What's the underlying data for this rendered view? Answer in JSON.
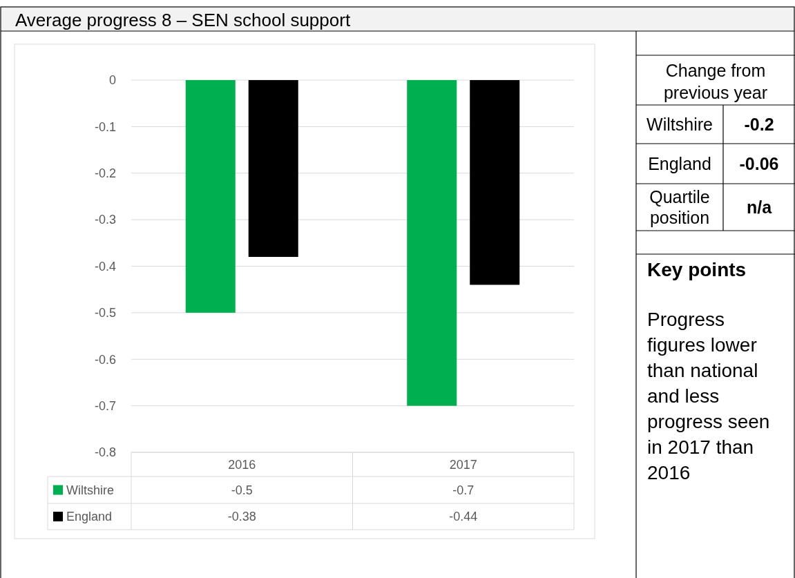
{
  "chart_data": [
    {
      "type": "bar",
      "title": "Average progress 8 – SEN school support",
      "categories": [
        "2016",
        "2017"
      ],
      "series": [
        {
          "name": "Wiltshire",
          "color": "#00b050",
          "values": [
            -0.5,
            -0.7
          ]
        },
        {
          "name": "England",
          "color": "#000000",
          "values": [
            -0.38,
            -0.44
          ]
        }
      ],
      "ylim": [
        -0.8,
        0
      ],
      "yticks": [
        0,
        -0.1,
        -0.2,
        -0.3,
        -0.4,
        -0.5,
        -0.6,
        -0.7,
        -0.8
      ],
      "grid": "y",
      "legend": "bottom",
      "data_labels": true
    },
    {
      "type": "other",
      "title": "Key points",
      "annotations": [
        "Change from previous year",
        "Wiltshire",
        "-0.2",
        "England",
        "-0.06",
        "Quartile position",
        "n/a",
        "Progress figures lower than national and less progress seen in 2017 than 2016"
      ]
    }
  ]
}
